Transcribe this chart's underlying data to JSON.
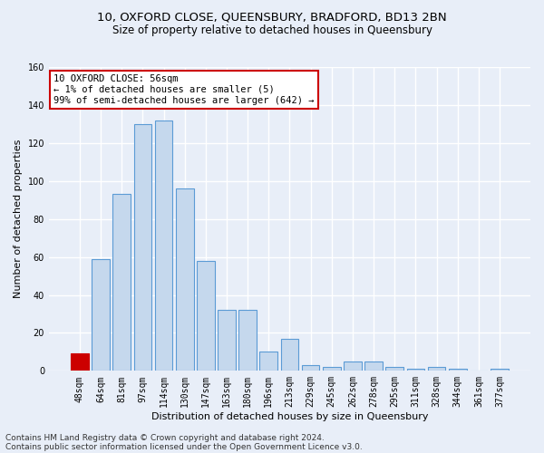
{
  "title": "10, OXFORD CLOSE, QUEENSBURY, BRADFORD, BD13 2BN",
  "subtitle": "Size of property relative to detached houses in Queensbury",
  "xlabel": "Distribution of detached houses by size in Queensbury",
  "ylabel": "Number of detached properties",
  "categories": [
    "48sqm",
    "64sqm",
    "81sqm",
    "97sqm",
    "114sqm",
    "130sqm",
    "147sqm",
    "163sqm",
    "180sqm",
    "196sqm",
    "213sqm",
    "229sqm",
    "245sqm",
    "262sqm",
    "278sqm",
    "295sqm",
    "311sqm",
    "328sqm",
    "344sqm",
    "361sqm",
    "377sqm"
  ],
  "values": [
    9,
    59,
    93,
    130,
    132,
    96,
    58,
    32,
    32,
    10,
    17,
    3,
    2,
    5,
    5,
    2,
    1,
    2,
    1,
    0,
    1
  ],
  "bar_color": "#c5d8ed",
  "bar_edge_color": "#5b9bd5",
  "highlight_bar_index": 0,
  "highlight_bar_color": "#cc0000",
  "highlight_bar_edge_color": "#cc0000",
  "annotation_text": "10 OXFORD CLOSE: 56sqm\n← 1% of detached houses are smaller (5)\n99% of semi-detached houses are larger (642) →",
  "annotation_box_color": "#ffffff",
  "annotation_box_edge_color": "#cc0000",
  "ylim": [
    0,
    160
  ],
  "yticks": [
    0,
    20,
    40,
    60,
    80,
    100,
    120,
    140,
    160
  ],
  "background_color": "#e8eef8",
  "plot_background_color": "#e8eef8",
  "grid_color": "#ffffff",
  "footer_line1": "Contains HM Land Registry data © Crown copyright and database right 2024.",
  "footer_line2": "Contains public sector information licensed under the Open Government Licence v3.0.",
  "title_fontsize": 9.5,
  "subtitle_fontsize": 8.5,
  "xlabel_fontsize": 8,
  "ylabel_fontsize": 8,
  "tick_fontsize": 7,
  "annotation_fontsize": 7.5,
  "footer_fontsize": 6.5
}
